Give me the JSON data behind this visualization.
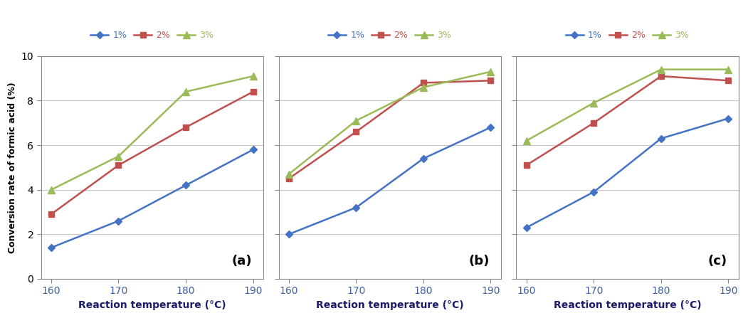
{
  "x": [
    160,
    170,
    180,
    190
  ],
  "panels": [
    {
      "label": "(a)",
      "series": {
        "1%": [
          1.4,
          2.6,
          4.2,
          5.8
        ],
        "2%": [
          2.9,
          5.1,
          6.8,
          8.4
        ],
        "3%": [
          4.0,
          5.5,
          8.4,
          9.1
        ]
      }
    },
    {
      "label": "(b)",
      "series": {
        "1%": [
          2.0,
          3.2,
          5.4,
          6.8
        ],
        "2%": [
          4.5,
          6.6,
          8.8,
          8.9
        ],
        "3%": [
          4.7,
          7.1,
          8.6,
          9.3
        ]
      }
    },
    {
      "label": "(c)",
      "series": {
        "1%": [
          2.3,
          3.9,
          6.3,
          7.2
        ],
        "2%": [
          5.1,
          7.0,
          9.1,
          8.9
        ],
        "3%": [
          6.2,
          7.9,
          9.4,
          9.4
        ]
      }
    }
  ],
  "colors": {
    "1%": "#4472C4",
    "2%": "#C0504D",
    "3%": "#9BBB59"
  },
  "markers": {
    "1%": "D",
    "2%": "s",
    "3%": "^"
  },
  "marker_sizes": {
    "1%": 5,
    "2%": 6,
    "3%": 7
  },
  "ylabel": "Conversion rate of formic acid (%)",
  "xlabel": "Reaction temperature (°C)",
  "ylim": [
    0,
    10
  ],
  "yticks": [
    0,
    2,
    4,
    6,
    8,
    10
  ],
  "xticks": [
    160,
    170,
    180,
    190
  ],
  "legend_labels": [
    "1%",
    "2%",
    "3%"
  ],
  "plot_bg": "#ffffff",
  "fig_bg": "#ffffff",
  "grid_color": "#c8c8c8",
  "tick_label_color": "#4060a0",
  "xlabel_color": "#1a1a6e",
  "ylabel_color": "#000000",
  "spine_color": "#888888"
}
